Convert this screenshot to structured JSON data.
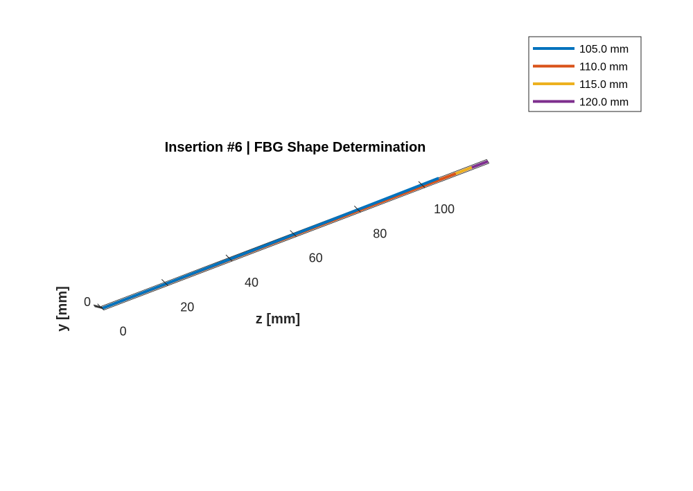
{
  "chart_data": {
    "type": "line",
    "title": "Insertion #6 | FBG Shape Determination",
    "xlabel": "z [mm]",
    "ylabel": "y [mm]",
    "zlabel": "",
    "projection": "3d",
    "z_ticks": [
      0,
      20,
      40,
      60,
      80,
      100
    ],
    "y_ticks": [
      0
    ],
    "zlim": [
      0,
      120
    ],
    "grid": true,
    "legend_position": "top-right",
    "series": [
      {
        "name": "105.0 mm",
        "color": "#0072BD",
        "z": [
          0,
          35,
          70,
          105
        ],
        "y": [
          0,
          -0.4,
          -1.3,
          -2.6
        ]
      },
      {
        "name": "110.0 mm",
        "color": "#D95319",
        "z": [
          0,
          36.7,
          73.3,
          110
        ],
        "y": [
          0,
          0,
          0,
          0
        ]
      },
      {
        "name": "115.0 mm",
        "color": "#EDB120",
        "z": [
          0,
          38.3,
          76.7,
          115
        ],
        "y": [
          0,
          0,
          0,
          0
        ]
      },
      {
        "name": "120.0 mm",
        "color": "#7E2F8E",
        "z": [
          0,
          40,
          80,
          120
        ],
        "y": [
          0,
          0,
          0,
          0
        ]
      }
    ]
  }
}
